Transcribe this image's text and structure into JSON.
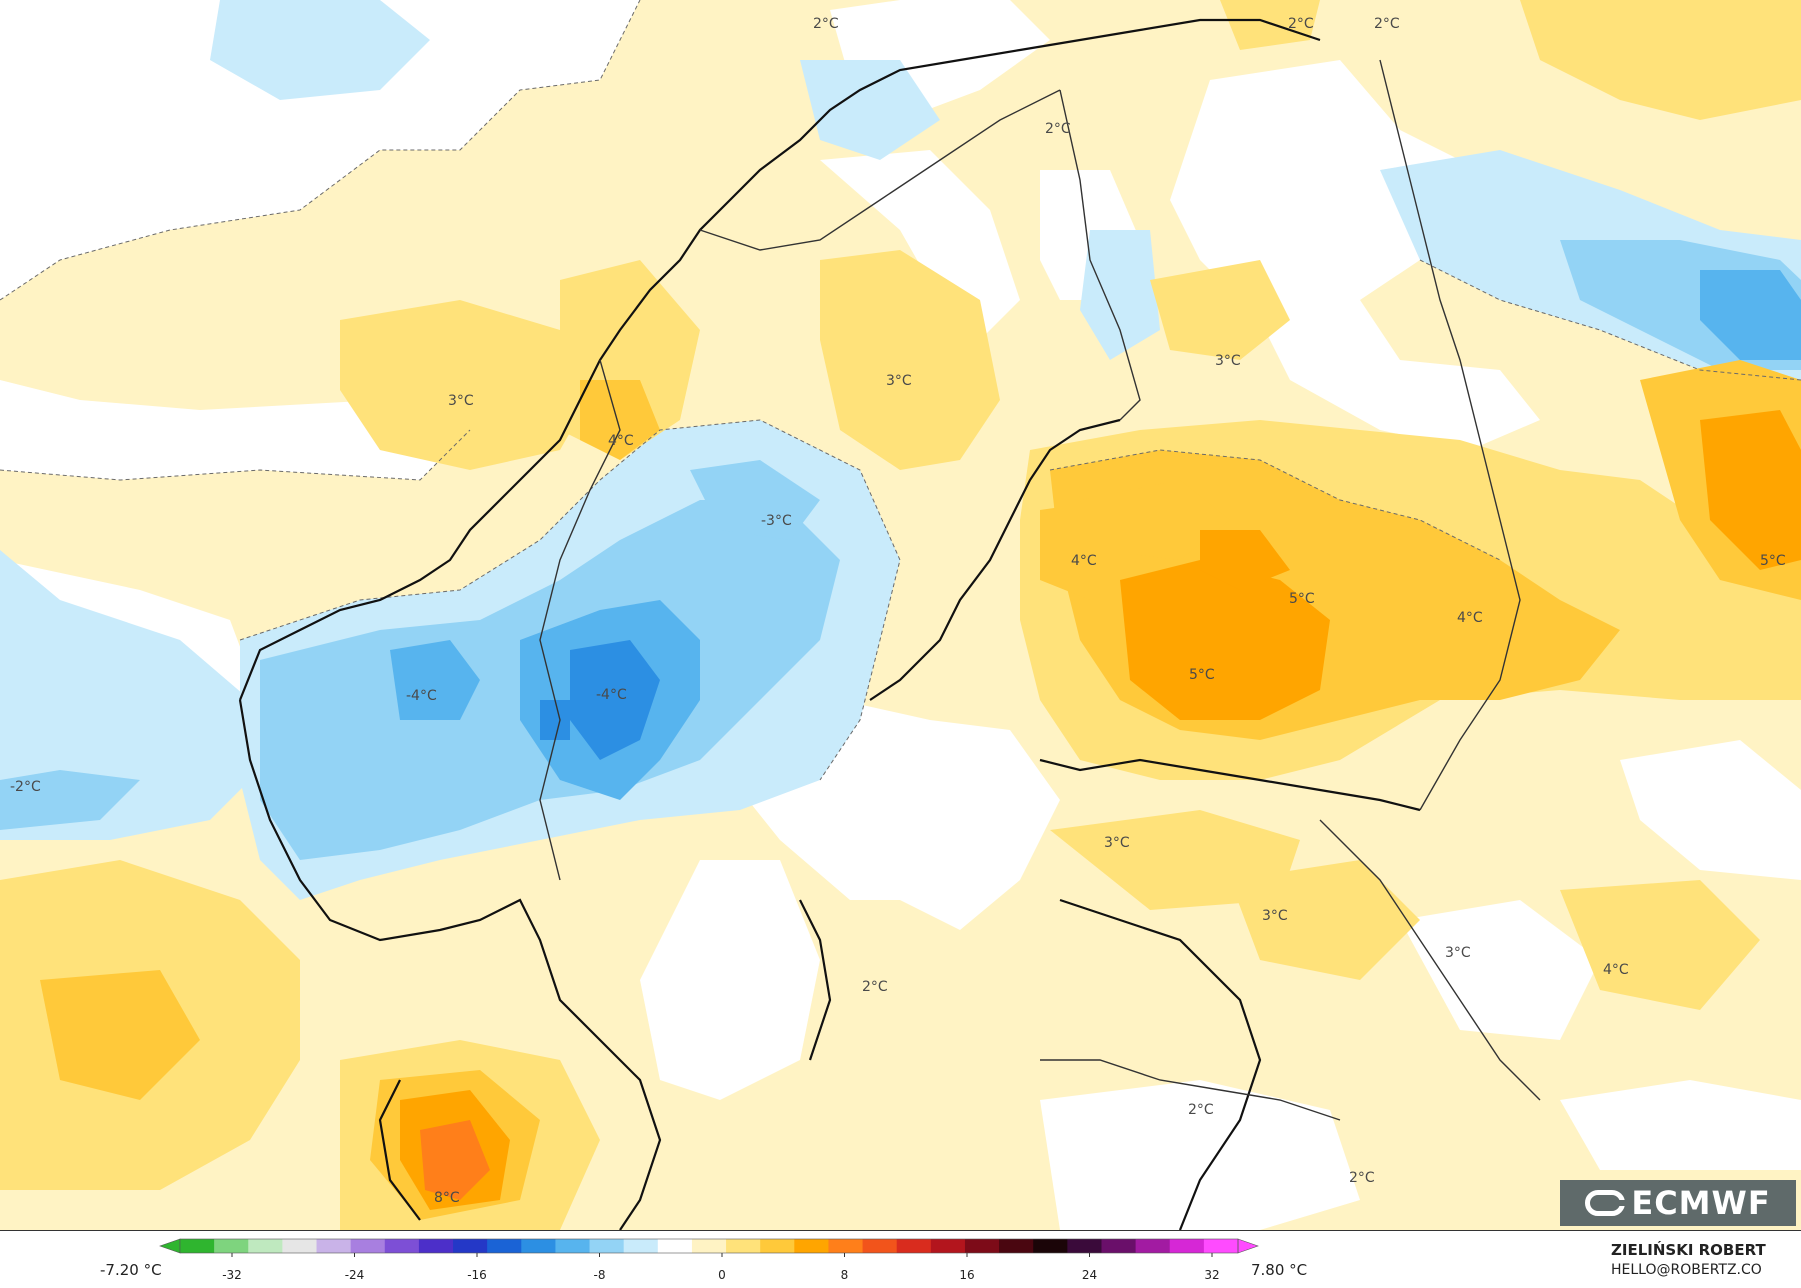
{
  "map": {
    "labels": [
      {
        "id": "l1",
        "text": "2°C"
      },
      {
        "id": "l2",
        "text": "2°C"
      },
      {
        "id": "l3",
        "text": "2°C"
      },
      {
        "id": "l4",
        "text": "2°C"
      },
      {
        "id": "l5",
        "text": "3°C"
      },
      {
        "id": "l6",
        "text": "3°C"
      },
      {
        "id": "l7",
        "text": "3°C"
      },
      {
        "id": "l8",
        "text": "4°C"
      },
      {
        "id": "l9",
        "text": "-3°C"
      },
      {
        "id": "l10",
        "text": "4°C"
      },
      {
        "id": "l11",
        "text": "5°C"
      },
      {
        "id": "l12",
        "text": "4°C"
      },
      {
        "id": "l13",
        "text": "5°C"
      },
      {
        "id": "l14",
        "text": "5°C"
      },
      {
        "id": "l15",
        "text": "-4°C"
      },
      {
        "id": "l16",
        "text": "-4°C"
      },
      {
        "id": "l17",
        "text": "-2°C"
      },
      {
        "id": "l18",
        "text": "3°C"
      },
      {
        "id": "l19",
        "text": "3°C"
      },
      {
        "id": "l20",
        "text": "3°C"
      },
      {
        "id": "l21",
        "text": "4°C"
      },
      {
        "id": "l22",
        "text": "2°C"
      },
      {
        "id": "l23",
        "text": "2°C"
      },
      {
        "id": "l24",
        "text": "2°C"
      },
      {
        "id": "l25",
        "text": "8°C"
      }
    ]
  },
  "legend": {
    "min_label": "-7.20 °C",
    "max_label": "7.80 °C",
    "ticks": [
      "-32",
      "-24",
      "-16",
      "-8",
      "0",
      "8",
      "16",
      "24",
      "32"
    ],
    "colors": [
      "#2fb52f",
      "#7ed47e",
      "#bfe9bf",
      "#e6e6e6",
      "#c9b3e8",
      "#a87fe0",
      "#7d4fd6",
      "#4c2fc9",
      "#2438c7",
      "#1a63d6",
      "#2c8fe3",
      "#57b4ee",
      "#93d3f5",
      "#c9ebfb",
      "#ffffff",
      "#fff3c4",
      "#ffe27a",
      "#ffc93a",
      "#ffa500",
      "#ff7f1a",
      "#f2541b",
      "#d92c1e",
      "#b3151d",
      "#7d0b18",
      "#4a0610",
      "#1b0508",
      "#3a0a3a",
      "#6a0f6a",
      "#a21ba2",
      "#d627d6",
      "#ff4bff"
    ]
  },
  "brand": {
    "logo": "ECMWF",
    "author": "ZIELIŃSKI ROBERT",
    "email": "HELLO@ROBERTZ.CO"
  }
}
